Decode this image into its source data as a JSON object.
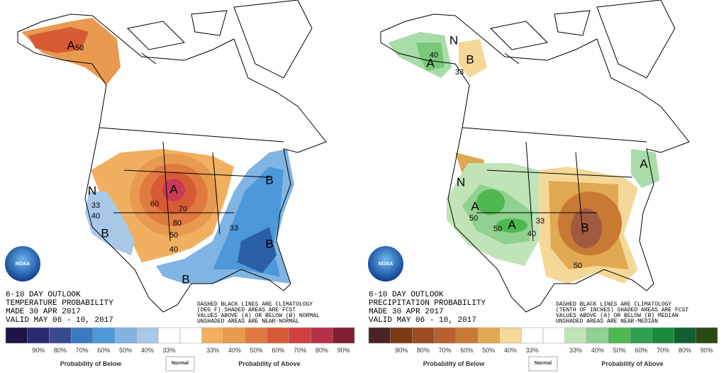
{
  "panels": [
    {
      "title_lines": [
        "6-10 DAY OUTLOOK",
        "TEMPERATURE PROBABILITY",
        "MADE   30 APR 2017",
        "VALID   MAY 06 - 10, 2017"
      ],
      "notes": [
        "DASHED BLACK LINES ARE CLIMATOLOGY",
        "(DEG F) SHADED AREAS ARE FCST",
        "VALUES ABOVE (A) OR BELOW (B) NORMAL",
        "UNSHADED AREAS ARE NEAR-NORMAL"
      ],
      "logo": "NOAA",
      "map_labels": [
        "A",
        "A",
        "B",
        "B",
        "B",
        "B",
        "N",
        "33",
        "40",
        "50",
        "60",
        "70",
        "80",
        "50",
        "40",
        "33"
      ],
      "legend": {
        "colors": [
          "#1e1448",
          "#2a2a70",
          "#3a4a90",
          "#3a7cc0",
          "#4c98d8",
          "#80b4e2",
          "#a8c8e8",
          "#ffffff",
          "#ffffff",
          "#f0b060",
          "#e89a50",
          "#e07a40",
          "#d85a35",
          "#d04040",
          "#b83048",
          "#802030"
        ],
        "labels": [
          "90%",
          "80%",
          "70%",
          "60%",
          "50%",
          "40%",
          "33%",
          "33%",
          "40%",
          "50%",
          "60%",
          "70%",
          "80%",
          "90%"
        ],
        "below": "Probability of Below",
        "normal": "Normal",
        "above": "Probability of Above"
      }
    },
    {
      "title_lines": [
        "6-10 DAY OUTLOOK",
        "PRECIPITATION PROBABILITY",
        "MADE   30 APR 2017",
        "VALID   MAY 06 - 10, 2017"
      ],
      "notes": [
        "DASHED BLACK LINES ARE CLIMATOLOGY",
        "(TENTH OF INCHES) SHADED AREAS ARE FCST",
        "VALUES ABOVE (A) OR BELOW (B) MEDIAN",
        "UNSHADED AREAS ARE NEAR-MEDIAN"
      ],
      "logo": "NOAA",
      "map_labels": [
        "A",
        "N",
        "B",
        "N",
        "A",
        "A",
        "50",
        "50",
        "40",
        "33",
        "B",
        "50",
        "A",
        "40",
        "33"
      ],
      "legend": {
        "colors": [
          "#4a2424",
          "#7a3a12",
          "#a04a24",
          "#b86030",
          "#c87a34",
          "#e0a850",
          "#f5d898",
          "#ffffff",
          "#ffffff",
          "#c0e4b8",
          "#90d090",
          "#50b850",
          "#2ea050",
          "#1a8a3a",
          "#106030",
          "#2a4a14"
        ],
        "labels": [
          "90%",
          "80%",
          "70%",
          "60%",
          "50%",
          "40%",
          "33%",
          "33%",
          "40%",
          "50%",
          "60%",
          "70%",
          "80%",
          "90%"
        ],
        "below": "Probability of Below",
        "normal": "Normal",
        "above": "Probability of Above"
      }
    }
  ]
}
